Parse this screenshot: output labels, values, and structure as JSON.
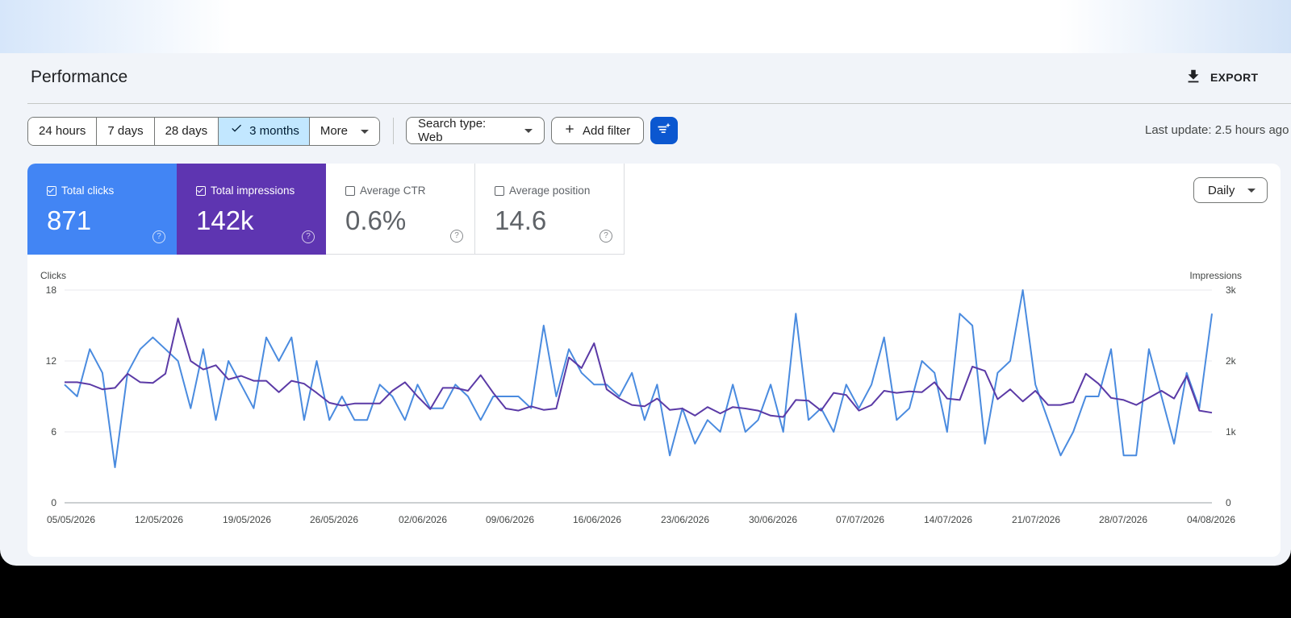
{
  "header": {
    "title": "Performance",
    "export_label": "EXPORT"
  },
  "toolbar": {
    "ranges": [
      "24 hours",
      "7 days",
      "28 days",
      "3 months",
      "More"
    ],
    "active_range": "3 months",
    "search_type": "Search type: Web",
    "add_filter": "Add filter",
    "last_update": "Last update: 2.5 hours ago"
  },
  "metrics": [
    {
      "label": "Total clicks",
      "value": "871",
      "checked": true,
      "color": "#4285f4"
    },
    {
      "label": "Total impressions",
      "value": "142k",
      "checked": true,
      "color": "#5e35b1"
    },
    {
      "label": "Average CTR",
      "value": "0.6%",
      "checked": false
    },
    {
      "label": "Average position",
      "value": "14.6",
      "checked": false
    }
  ],
  "granularity": "Daily",
  "colors": {
    "clicks": "#4a8bdf",
    "impressions": "#5b3aa6",
    "accent": "#0b57d0",
    "active_range_bg": "#c2e7ff"
  },
  "chart_data": {
    "type": "line",
    "ylabel": "Clicks",
    "y2label": "Impressions",
    "ylim": [
      0,
      18
    ],
    "y2lim": [
      0,
      3000
    ],
    "yticks": [
      "18",
      "12",
      "6",
      "0"
    ],
    "y2ticks": [
      "3k",
      "2k",
      "1k",
      "0"
    ],
    "x_tick_labels": [
      "05/05/2026",
      "12/05/2026",
      "19/05/2026",
      "26/05/2026",
      "02/06/2026",
      "09/06/2026",
      "16/06/2026",
      "23/06/2026",
      "30/06/2026",
      "07/07/2026",
      "14/07/2026",
      "21/07/2026",
      "28/07/2026",
      "04/08/2026"
    ],
    "grid": true,
    "series": [
      {
        "name": "Clicks",
        "axis": "left",
        "values": [
          10,
          9,
          13,
          11,
          3,
          11,
          13,
          14,
          13,
          12,
          8,
          13,
          7,
          12,
          10,
          8,
          14,
          12,
          14,
          7,
          12,
          7,
          9,
          7,
          7,
          10,
          9,
          7,
          10,
          8,
          8,
          10,
          9,
          7,
          9,
          9,
          9,
          8,
          15,
          9,
          13,
          11,
          10,
          10,
          9,
          11,
          7,
          10,
          4,
          8,
          5,
          7,
          6,
          10,
          6,
          7,
          10,
          6,
          16,
          7,
          8,
          6,
          10,
          8,
          10,
          14,
          7,
          8,
          12,
          11,
          6,
          16,
          15,
          5,
          11,
          12,
          18,
          10,
          7,
          4,
          6,
          9,
          9,
          13,
          4,
          4,
          13,
          9,
          5,
          11,
          8,
          16
        ]
      },
      {
        "name": "Impressions",
        "axis": "right",
        "values": [
          1700,
          1700,
          1670,
          1600,
          1620,
          1820,
          1700,
          1690,
          1820,
          2600,
          2000,
          1880,
          1940,
          1740,
          1790,
          1720,
          1720,
          1560,
          1720,
          1680,
          1550,
          1410,
          1370,
          1400,
          1400,
          1400,
          1580,
          1700,
          1500,
          1320,
          1620,
          1620,
          1580,
          1800,
          1550,
          1330,
          1300,
          1360,
          1310,
          1330,
          2050,
          1900,
          2250,
          1600,
          1470,
          1380,
          1360,
          1470,
          1310,
          1330,
          1230,
          1350,
          1260,
          1350,
          1330,
          1300,
          1230,
          1210,
          1450,
          1440,
          1300,
          1550,
          1520,
          1300,
          1380,
          1580,
          1550,
          1570,
          1560,
          1700,
          1470,
          1450,
          1920,
          1860,
          1460,
          1600,
          1430,
          1580,
          1380,
          1380,
          1420,
          1820,
          1680,
          1480,
          1450,
          1380,
          1480,
          1580,
          1470,
          1790,
          1300,
          1270
        ]
      }
    ]
  }
}
